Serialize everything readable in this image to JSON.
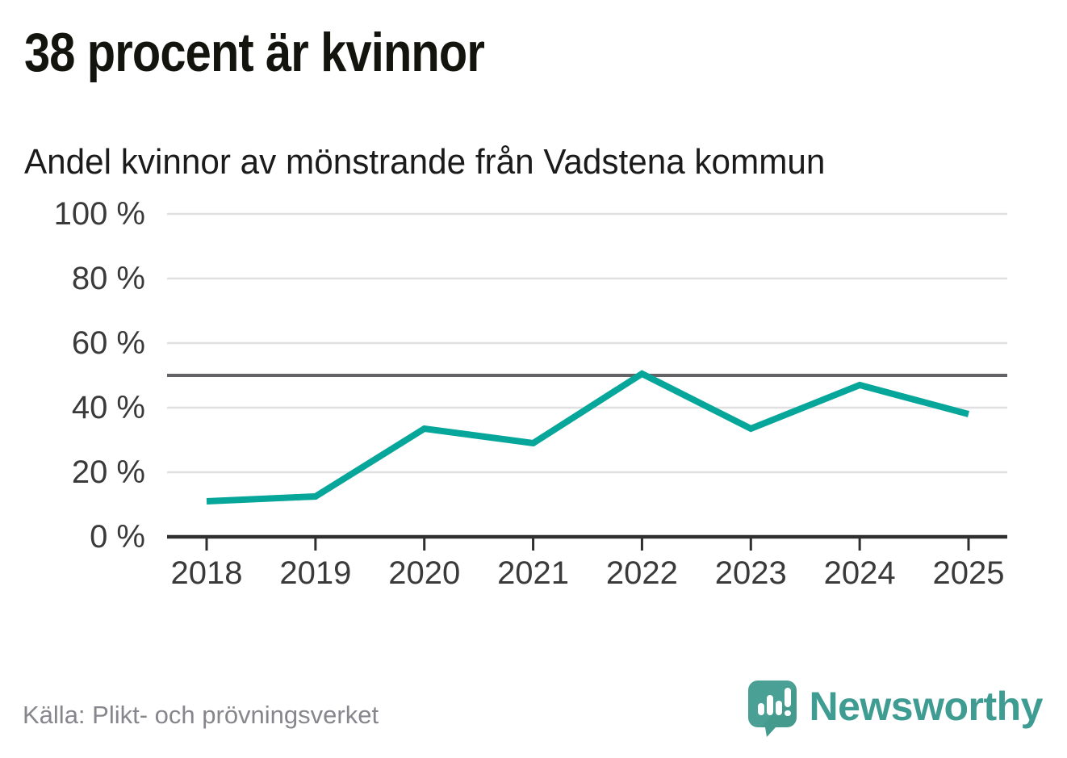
{
  "header": {
    "title": "38 procent är kvinnor",
    "subtitle": "Andel kvinnor av mönstrande från Vadstena kommun"
  },
  "footer": {
    "source": "Källa: Plikt- och prövningsverket",
    "brand": "Newsworthy"
  },
  "colors": {
    "line": "#07a69b",
    "grid": "#e0e0e2",
    "reference_line": "#646468",
    "axis": "#2f2f2f",
    "tick_label": "#3a3a3a",
    "title": "#14140f",
    "source": "#86868c",
    "brand_teal": "#3f9c92",
    "logo_bubble": "#4aa094"
  },
  "chart_data": {
    "type": "line",
    "title": "38 procent är kvinnor",
    "subtitle": "Andel kvinnor av mönstrande från Vadstena kommun",
    "series_name": "Andel kvinnor av mönstrande",
    "categories": [
      "2018",
      "2019",
      "2020",
      "2021",
      "2022",
      "2023",
      "2024",
      "2025"
    ],
    "values": [
      11,
      12.5,
      33.5,
      29,
      50.5,
      33.5,
      47,
      38
    ],
    "unit": "%",
    "ylim": [
      0,
      100
    ],
    "yticks": [
      0,
      20,
      40,
      60,
      80,
      100
    ],
    "ytick_labels": [
      "0 %",
      "20 %",
      "40 %",
      "60 %",
      "80 %",
      "100 %"
    ],
    "reference_line": 50,
    "grid": "horizontal",
    "legend": "none",
    "xlabel": "",
    "ylabel": ""
  }
}
